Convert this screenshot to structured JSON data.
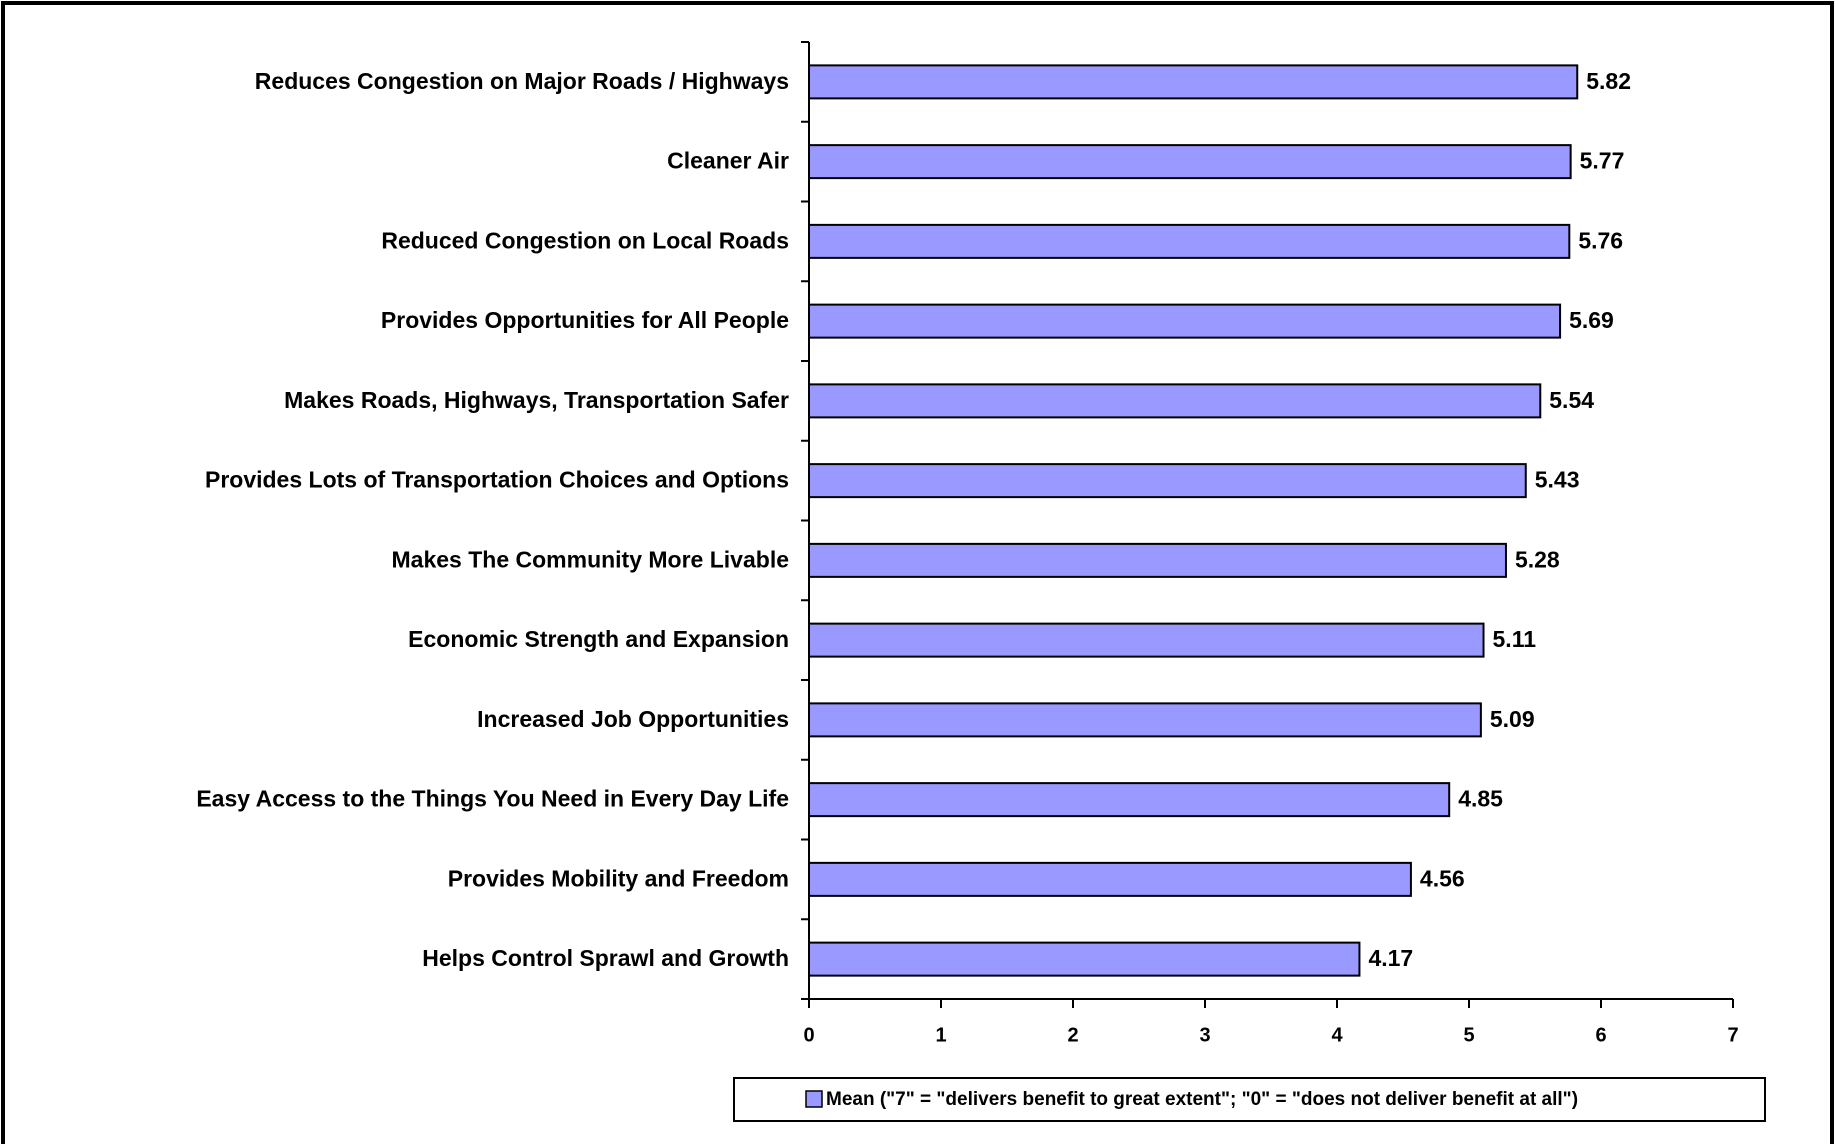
{
  "chart_data": {
    "type": "bar",
    "orientation": "horizontal",
    "categories": [
      "Reduces Congestion on Major Roads / Highways",
      "Cleaner Air",
      "Reduced Congestion on Local Roads",
      "Provides Opportunities for All People",
      "Makes Roads, Highways, Transportation Safer",
      "Provides Lots of Transportation Choices and Options",
      "Makes The Community More Livable",
      "Economic Strength and Expansion",
      "Increased Job Opportunities",
      "Easy Access to the Things You Need in Every Day Life",
      "Provides Mobility and Freedom",
      "Helps Control Sprawl and Growth"
    ],
    "series": [
      {
        "name": "Mean (\"7\" = \"delivers benefit to great extent\"; \"0\" = \"does not deliver benefit at all\")",
        "color": "#9999ff",
        "values": [
          5.82,
          5.77,
          5.76,
          5.69,
          5.54,
          5.43,
          5.28,
          5.11,
          5.09,
          4.85,
          4.56,
          4.17
        ]
      }
    ],
    "xlim": [
      0,
      7
    ],
    "xticks": [
      0,
      1,
      2,
      3,
      4,
      5,
      6,
      7
    ],
    "grid": false,
    "legend": "bottom"
  }
}
